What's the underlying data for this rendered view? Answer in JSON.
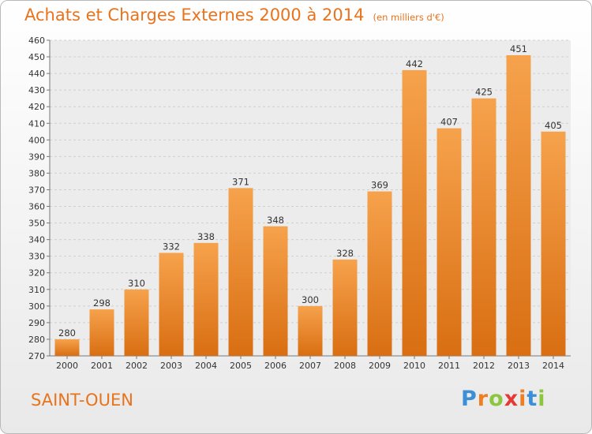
{
  "chart_data": {
    "type": "bar",
    "title": "Achats et Charges Externes 2000 à 2014",
    "subtitle": "(en milliers d'€)",
    "categories": [
      "2000",
      "2001",
      "2002",
      "2003",
      "2004",
      "2005",
      "2006",
      "2007",
      "2008",
      "2009",
      "2010",
      "2011",
      "2012",
      "2013",
      "2014"
    ],
    "values": [
      280,
      298,
      310,
      332,
      338,
      371,
      348,
      300,
      328,
      369,
      442,
      407,
      425,
      451,
      405
    ],
    "ylim": [
      270,
      460
    ],
    "ytick_step": 10,
    "grid": true,
    "bar_color_light": "#f6a24c",
    "bar_color_dark": "#d96e12"
  },
  "location_label": "SAINT-OUEN",
  "brand": {
    "letters": [
      "P",
      "r",
      "o",
      "x",
      "i",
      "t",
      "i"
    ],
    "colors": [
      "#3a8fd6",
      "#ef7d22",
      "#8cc63f",
      "#e53935",
      "#ef7d22",
      "#3a8fd6",
      "#8cc63f"
    ]
  }
}
